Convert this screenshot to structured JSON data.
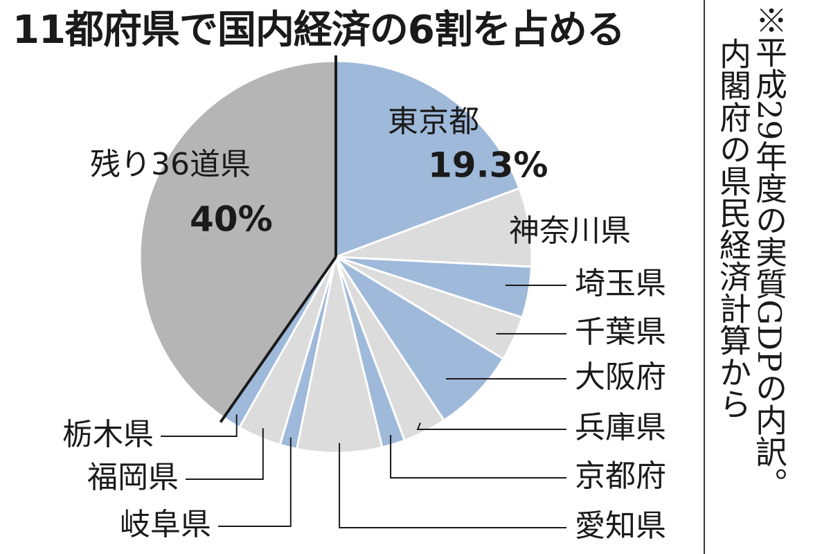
{
  "title": "11都府県で国内経済の6割を占める",
  "note": {
    "line1": "※平成29年度の実質GDPの内訳。",
    "line2": "内閣府の県民経済計算から"
  },
  "colors": {
    "blue": "#9fb9da",
    "light": "#dcdcdc",
    "gray": "#b5b5b5",
    "line": "#1a1a1a"
  },
  "chart_data": {
    "type": "pie",
    "title": "11都府県で国内経済の6割を占める",
    "unit": "%",
    "slices": [
      {
        "name": "東京都",
        "value": 19.3,
        "label": "19.3%",
        "color": "blue"
      },
      {
        "name": "神奈川県",
        "value": 6.5,
        "color": "light"
      },
      {
        "name": "埼玉県",
        "value": 4.2,
        "color": "blue"
      },
      {
        "name": "千葉県",
        "value": 3.7,
        "color": "light"
      },
      {
        "name": "大阪府",
        "value": 7.0,
        "color": "blue"
      },
      {
        "name": "兵庫県",
        "value": 3.6,
        "color": "light"
      },
      {
        "name": "京都府",
        "value": 1.9,
        "color": "blue"
      },
      {
        "name": "愛知県",
        "value": 7.0,
        "color": "light"
      },
      {
        "name": "岐阜県",
        "value": 1.4,
        "color": "blue"
      },
      {
        "name": "福岡県",
        "value": 3.6,
        "color": "light"
      },
      {
        "name": "栃木県",
        "value": 1.5,
        "color": "blue"
      },
      {
        "name": "残り36道県",
        "value": 40.3,
        "label": "40%",
        "color": "gray"
      }
    ]
  }
}
